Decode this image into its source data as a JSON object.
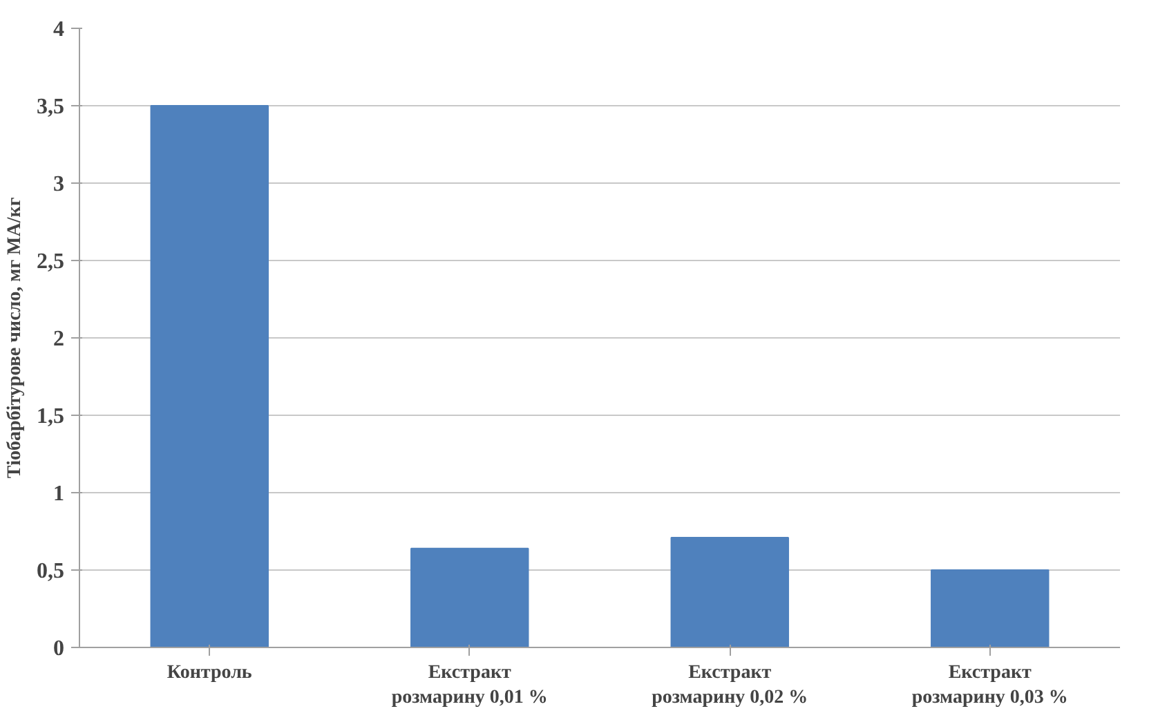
{
  "chart_data": {
    "type": "bar",
    "ylabel": "Тіобарбітурове число, мг МА/кг",
    "categories": [
      "Контроль",
      "Екстракт\nрозмарину 0,01 %",
      "Екстракт\nрозмарину 0,02 %",
      "Екстракт\nрозмарину 0,03 %"
    ],
    "values": [
      3.5,
      0.64,
      0.71,
      0.5
    ],
    "color": "#4f81bd",
    "ylim": [
      0,
      4
    ],
    "yticks": [
      0,
      {
        "value": 0.5,
        "label": "0,5"
      },
      1,
      {
        "value": 1.5,
        "label": "1,5"
      },
      2,
      {
        "value": 2.5,
        "label": "2,5"
      },
      3,
      {
        "value": 3.5,
        "label": "3,5"
      },
      4
    ],
    "grid": "y"
  }
}
